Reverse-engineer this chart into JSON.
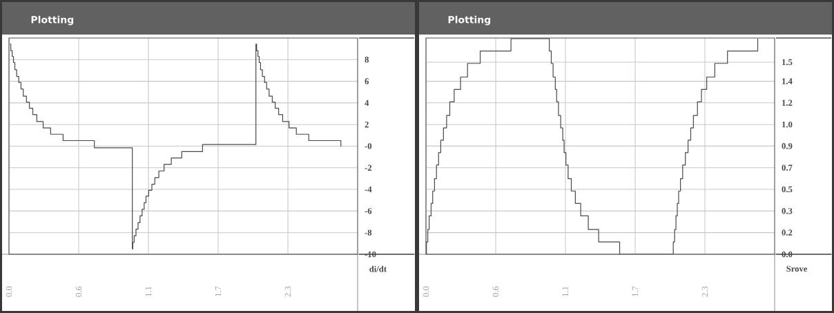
{
  "chart_data": [
    {
      "type": "step",
      "title": "Plotting",
      "ylabel": "di/dt",
      "color": "#484848",
      "grid": true,
      "x": [
        0.007,
        0.015,
        0.026,
        0.037,
        0.048,
        0.063,
        0.08,
        0.098,
        0.117,
        0.143,
        0.167,
        0.195,
        0.228,
        0.28,
        0.341,
        0.443,
        0.699,
        1.007,
        1.01,
        1.014,
        1.025,
        1.04,
        1.057,
        1.073,
        1.09,
        1.107,
        1.122,
        1.144,
        1.17,
        1.194,
        1.227,
        1.27,
        1.329,
        1.415,
        1.585,
        2.019,
        2.022,
        2.028,
        2.039,
        2.049,
        2.06,
        2.075,
        2.093,
        2.11,
        2.13,
        2.156,
        2.18,
        2.208,
        2.241,
        2.293,
        2.353,
        2.455,
        2.718
      ],
      "values": [
        9.44,
        8.83,
        8.29,
        7.73,
        7.07,
        6.45,
        5.89,
        5.28,
        4.62,
        4.06,
        3.5,
        2.91,
        2.27,
        1.69,
        1.1,
        0.51,
        -0.15,
        null,
        -9.5,
        -8.9,
        -8.29,
        -7.68,
        -7.07,
        -6.45,
        -5.84,
        -5.23,
        -4.62,
        -4.08,
        -3.52,
        -2.91,
        -2.3,
        -1.69,
        -1.1,
        -0.51,
        0.15,
        null,
        9.44,
        8.83,
        8.29,
        7.73,
        7.07,
        6.45,
        5.89,
        5.28,
        4.62,
        4.06,
        3.5,
        2.91,
        2.27,
        1.69,
        1.1,
        0.51,
        -0.05
      ],
      "xlim": [
        0,
        2.855
      ],
      "ylim": [
        -10,
        10
      ],
      "xticks": [
        {
          "value": 0,
          "label": "0.0"
        },
        {
          "value": 0.571,
          "label": "0.6"
        },
        {
          "value": 1.142,
          "label": "1.1"
        },
        {
          "value": 1.713,
          "label": "1.7"
        },
        {
          "value": 2.284,
          "label": "2.3"
        }
      ],
      "yticks": [
        -10,
        -8,
        -6,
        -4,
        -2,
        {
          "value": 0,
          "label": "-0"
        },
        2,
        4,
        6,
        8
      ]
    },
    {
      "type": "step",
      "title": "Plotting",
      "ylabel": "Srove",
      "color": "#484848",
      "grid": true,
      "x": [
        0,
        0.004,
        0.015,
        0.026,
        0.042,
        0.055,
        0.07,
        0.086,
        0.103,
        0.121,
        0.143,
        0.169,
        0.195,
        0.231,
        0.283,
        0.34,
        0.444,
        0.696,
        1.01,
        1.026,
        1.041,
        1.059,
        1.07,
        1.085,
        1.103,
        1.12,
        1.131,
        1.146,
        1.164,
        1.19,
        1.223,
        1.267,
        1.329,
        1.414,
        1.586,
        2.025,
        2.036,
        2.047,
        2.058,
        2.069,
        2.084,
        2.102,
        2.124,
        2.146,
        2.168,
        2.19,
        2.223,
        2.256,
        2.299,
        2.365,
        2.469,
        2.717
      ],
      "values": [
        0,
        0.1,
        0.2,
        0.31,
        0.41,
        0.51,
        0.61,
        0.72,
        0.82,
        0.92,
        1.02,
        1.12,
        1.23,
        1.33,
        1.43,
        1.54,
        1.64,
        1.74,
        1.64,
        1.54,
        1.43,
        1.33,
        1.23,
        1.12,
        1.02,
        0.92,
        0.82,
        0.72,
        0.61,
        0.51,
        0.41,
        0.31,
        0.2,
        0.1,
        0,
        0.1,
        0.2,
        0.31,
        0.41,
        0.51,
        0.61,
        0.72,
        0.82,
        0.92,
        1.02,
        1.12,
        1.23,
        1.33,
        1.43,
        1.54,
        1.64,
        1.74
      ],
      "xlim": [
        0,
        2.855
      ],
      "ylim": [
        0,
        1.745
      ],
      "xticks": [
        {
          "value": 0,
          "label": "0.0"
        },
        {
          "value": 0.571,
          "label": "0.6"
        },
        {
          "value": 1.142,
          "label": "1.1"
        },
        {
          "value": 1.713,
          "label": "1.7"
        },
        {
          "value": 2.284,
          "label": "2.3"
        }
      ],
      "yticks": [
        {
          "value": 0,
          "label": "0.0"
        },
        {
          "value": 0.175,
          "label": "0.2"
        },
        {
          "value": 0.349,
          "label": "0.3"
        },
        {
          "value": 0.524,
          "label": "0.5"
        },
        {
          "value": 0.698,
          "label": "0.7"
        },
        {
          "value": 0.873,
          "label": "0.9"
        },
        {
          "value": 1.047,
          "label": "1.0"
        },
        {
          "value": 1.222,
          "label": "1.2"
        },
        {
          "value": 1.396,
          "label": "1.4"
        },
        {
          "value": 1.55,
          "label": "1.5"
        }
      ]
    }
  ]
}
